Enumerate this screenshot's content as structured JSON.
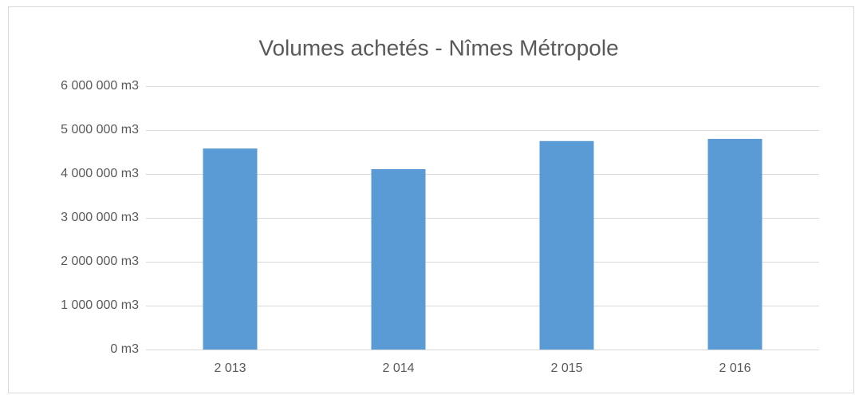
{
  "chart_data": {
    "type": "bar",
    "title": "Volumes achetés - Nîmes Métropole",
    "categories": [
      "2 013",
      "2 014",
      "2 015",
      "2 016"
    ],
    "values": [
      4580000,
      4110000,
      4750000,
      4800000
    ],
    "color": "#5b9bd5",
    "ylim": [
      0,
      6000000
    ],
    "yticks": [
      {
        "value": 0,
        "label": "0 m3"
      },
      {
        "value": 1000000,
        "label": "1 000 000 m3"
      },
      {
        "value": 2000000,
        "label": "2 000 000 m3"
      },
      {
        "value": 3000000,
        "label": "3 000 000 m3"
      },
      {
        "value": 4000000,
        "label": "4 000 000 m3"
      },
      {
        "value": 5000000,
        "label": "5 000 000 m3"
      },
      {
        "value": 6000000,
        "label": "6 000 000 m3"
      }
    ],
    "grid": true
  }
}
